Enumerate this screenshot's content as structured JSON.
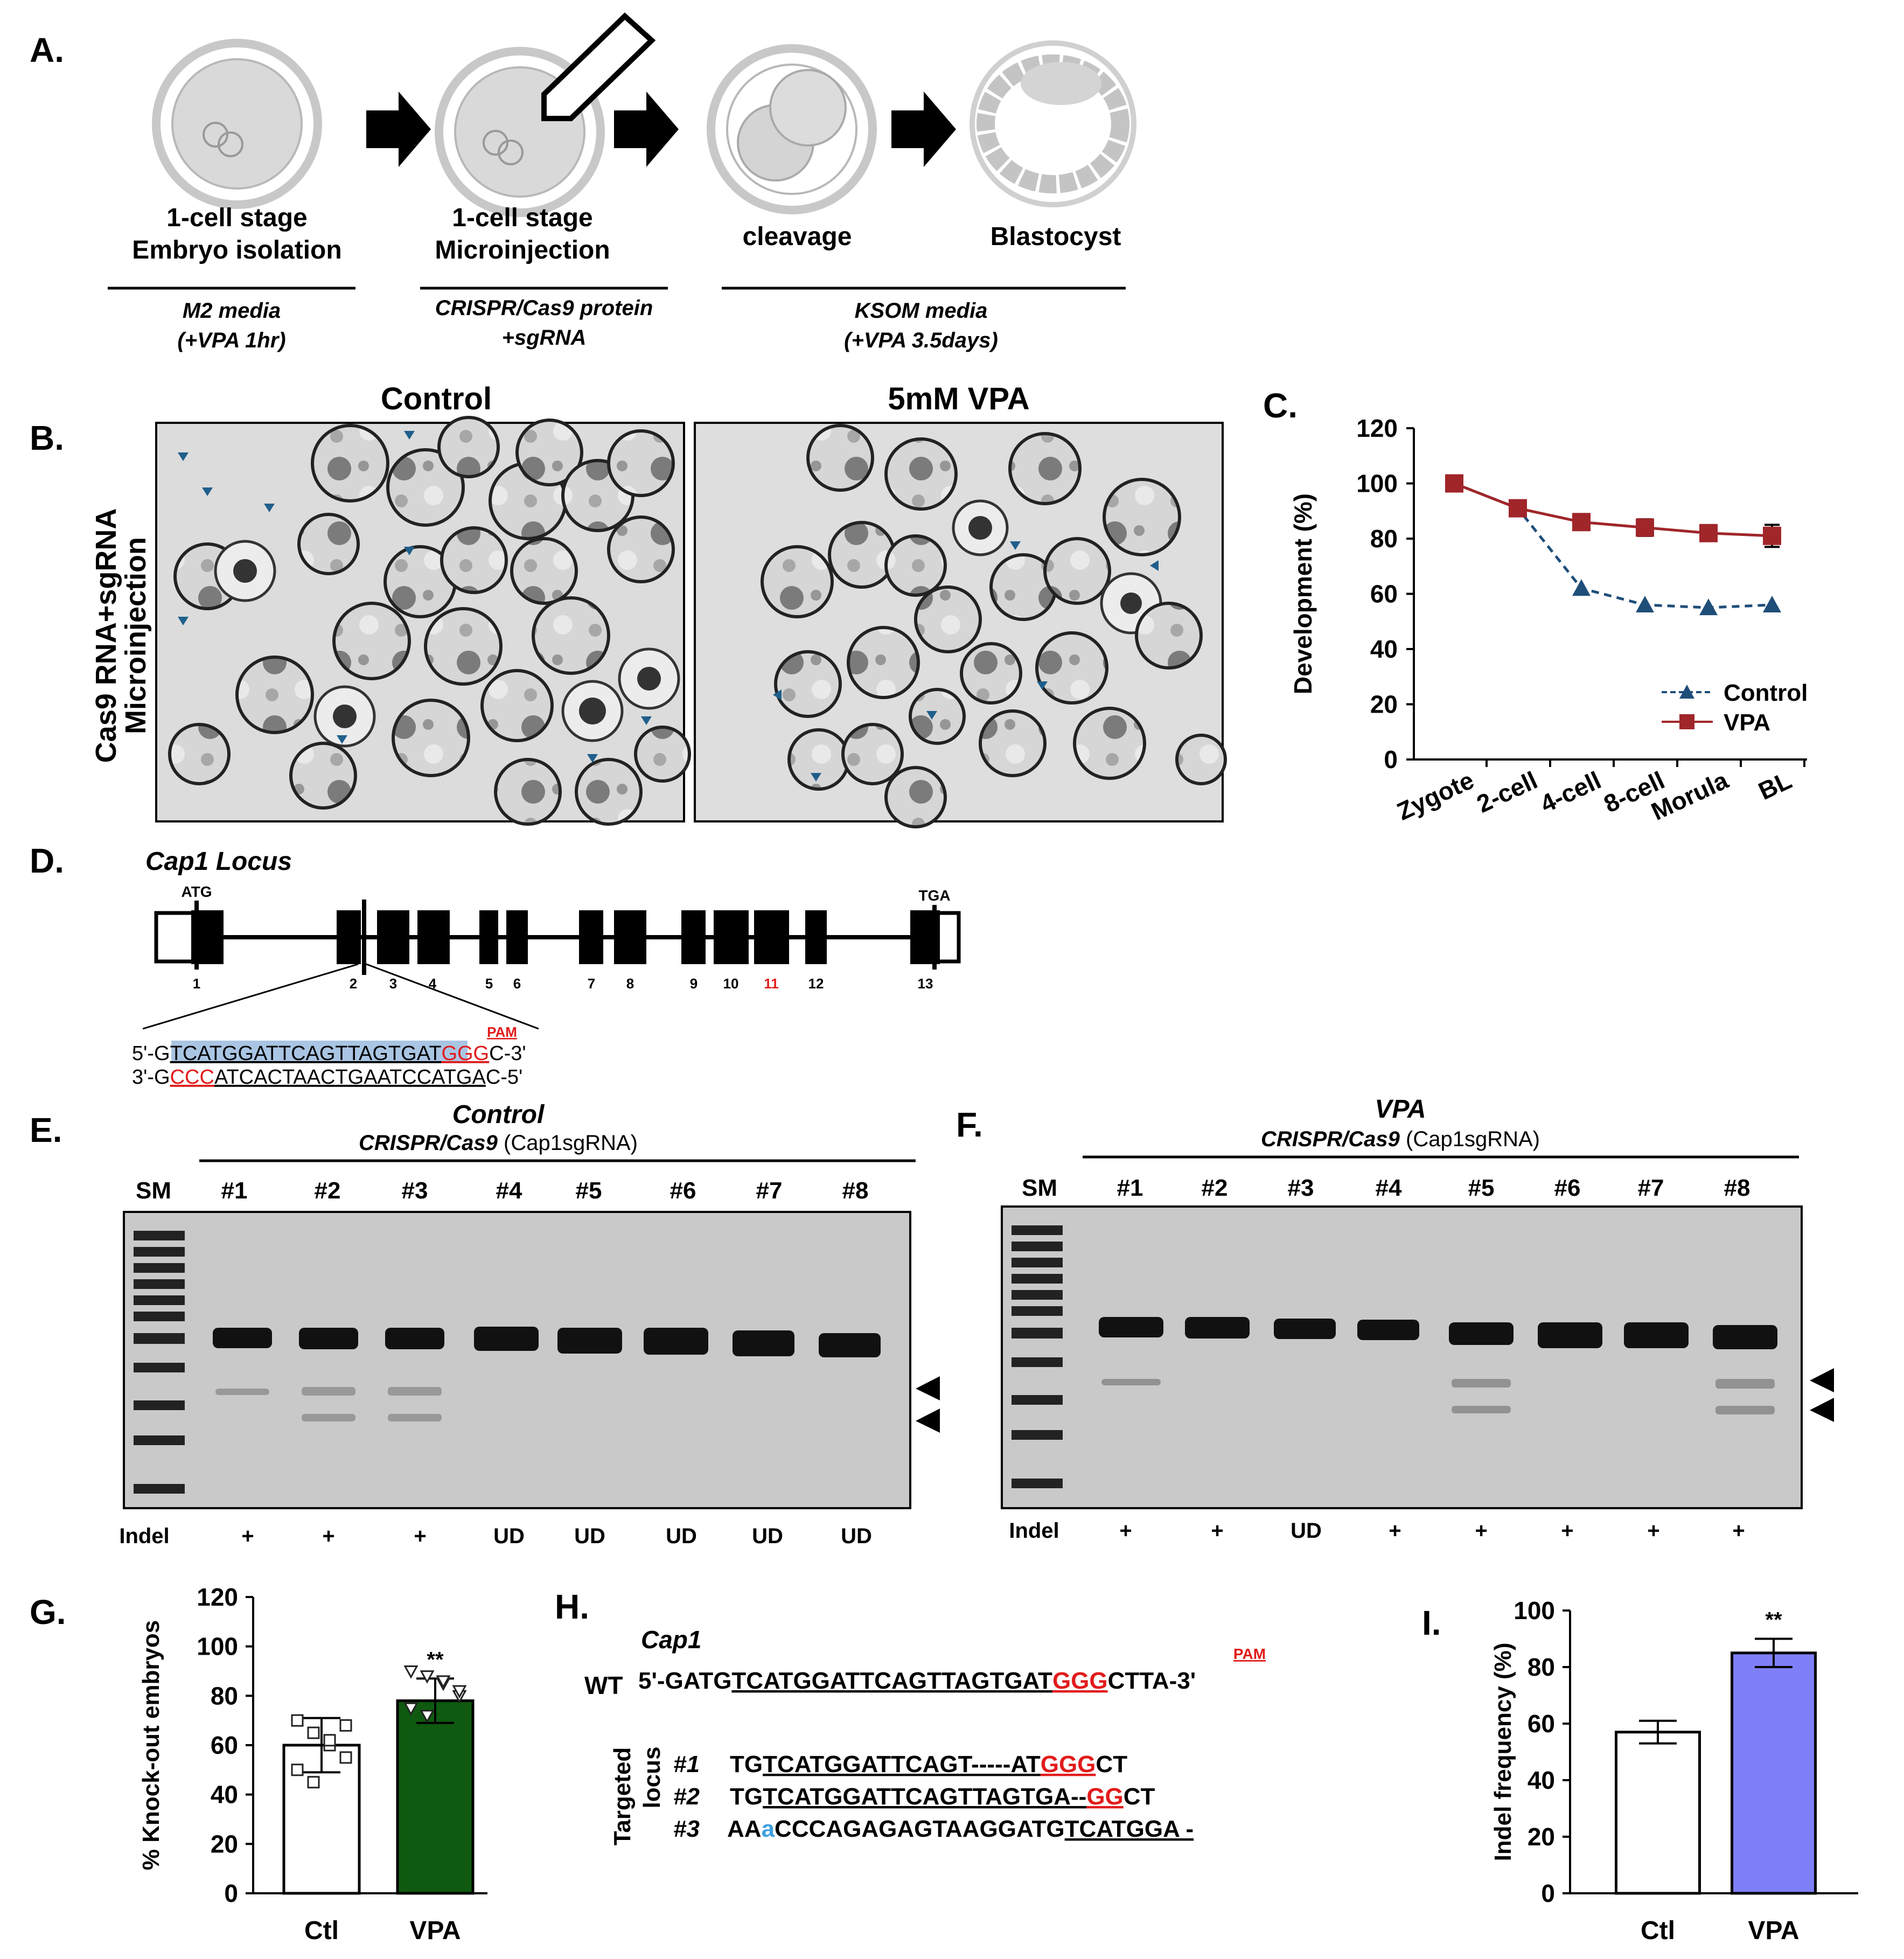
{
  "panels": {
    "A": {
      "label": "A.",
      "stage1": {
        "line1": "1-cell stage",
        "line2": "Embryo isolation"
      },
      "stage2": {
        "line1": "1-cell stage",
        "line2": "Microinjection"
      },
      "stage3": {
        "line1": "cleavage"
      },
      "stage4": {
        "line1": "Blastocyst"
      },
      "media1": {
        "line1": "M2 media",
        "line2": "(+VPA 1hr)"
      },
      "media2": {
        "line1": "CRISPR/Cas9 protein",
        "line2": "+sgRNA"
      },
      "media3": {
        "line1": "KSOM media",
        "line2": "(+VPA 3.5days)"
      }
    },
    "B": {
      "label": "B.",
      "ylabel1": "Cas9 RNA+sgRNA",
      "ylabel2": "Microinjection",
      "control_title": "Control",
      "vpa_title": "5mM VPA"
    },
    "D": {
      "label": "D.",
      "title": "Cap1 Locus",
      "atg": "ATG",
      "tga": "TGA",
      "exons": [
        "1",
        "2",
        "3",
        "4",
        "5",
        "6",
        "7",
        "8",
        "9",
        "10",
        "11",
        "12",
        "13"
      ],
      "pam": "PAM",
      "seq_top": {
        "pre": "5'-G",
        "target": "TCATGGATTCAGTTAGTGAT",
        "pam": "GGG",
        "post": "C-3'"
      },
      "seq_bot": {
        "pre": "3'-G",
        "pam": "CCC",
        "target": "ATCACTAACTGAATCCATGA",
        "post": "C-5'"
      }
    },
    "E": {
      "label": "E.",
      "title": "Control",
      "subtitle_em": "CRISPR/Cas9",
      "subtitle_rest": " (Cap1sgRNA)",
      "lanes": [
        "SM",
        "#1",
        "#2",
        "#3",
        "#4",
        "#5",
        "#6",
        "#7",
        "#8"
      ],
      "indel_label": "Indel",
      "indel": [
        "+",
        "+",
        "+",
        "UD",
        "UD",
        "UD",
        "UD",
        "UD"
      ]
    },
    "F": {
      "label": "F.",
      "title": "VPA",
      "subtitle_em": "CRISPR/Cas9",
      "subtitle_rest": " (Cap1sgRNA)",
      "lanes": [
        "SM",
        "#1",
        "#2",
        "#3",
        "#4",
        "#5",
        "#6",
        "#7",
        "#8"
      ],
      "indel_label": "Indel",
      "indel": [
        "+",
        "+",
        "UD",
        "+",
        "+",
        "+",
        "+",
        "+"
      ]
    },
    "H": {
      "label": "H.",
      "gene": "Cap1",
      "pam": "PAM",
      "wt_label": "WT",
      "wt": {
        "pre": "5'-GATG",
        "target": "TCATGGATTCAGTTAGTGAT",
        "pam": "GGG",
        "post": "CTTA-3'"
      },
      "targeted_label1": "Targeted",
      "targeted_label2": "locus",
      "rows": [
        {
          "id": "#1",
          "pre": "TG",
          "seq": "TCATGGATTCAGT-----AT",
          "pam": "GGG",
          "post": "CT"
        },
        {
          "id": "#2",
          "pre": "TG",
          "seq": "TCATGGATTCAGTTAGTGA--",
          "pam": "GG",
          "post": "CT"
        },
        {
          "id": "#3",
          "pre": "AA",
          "ins": "a",
          "seq": "CCCAGAGAGTAAGGATG",
          "tail": "TCATGGA -"
        }
      ]
    }
  },
  "chart_data": [
    {
      "panel": "C.",
      "type": "line",
      "title": "",
      "xlabel": "",
      "ylabel": "Development (%)",
      "ylim": [
        0,
        120
      ],
      "yticks": [
        0,
        20,
        40,
        60,
        80,
        100,
        120
      ],
      "categories": [
        "Zygote",
        "2-cell",
        "4-cell",
        "8-cell",
        "Morula",
        "BL"
      ],
      "series": [
        {
          "name": "Control",
          "values": [
            100,
            91,
            62,
            56,
            55,
            56
          ],
          "color": "#1f4e79",
          "marker": "triangle",
          "style": "dashed"
        },
        {
          "name": "VPA",
          "values": [
            100,
            91,
            86,
            84,
            82,
            81
          ],
          "color": "#a0262a",
          "marker": "square",
          "style": "solid",
          "errors": [
            1,
            2,
            2,
            3,
            2,
            4
          ]
        }
      ],
      "legend": "bottom-right"
    },
    {
      "panel": "G.",
      "type": "bar",
      "ylabel": "% Knock-out  embryos",
      "ylim": [
        0,
        120
      ],
      "yticks": [
        0,
        20,
        40,
        60,
        80,
        100,
        120
      ],
      "categories": [
        "Ctl",
        "VPA"
      ],
      "values": [
        60,
        78
      ],
      "errors": [
        11,
        9
      ],
      "colors": [
        "#ffffff",
        "#0f5a10"
      ],
      "points": [
        [
          70,
          65,
          60,
          55,
          50,
          45,
          62,
          68
        ],
        [
          90,
          88,
          85,
          80,
          75,
          72,
          86,
          82
        ]
      ],
      "significance": "**"
    },
    {
      "panel": "I.",
      "type": "bar",
      "ylabel": "Indel frequency (%)",
      "ylim": [
        0,
        100
      ],
      "yticks": [
        0,
        20,
        40,
        60,
        80,
        100
      ],
      "categories": [
        "Ctl",
        "VPA"
      ],
      "values": [
        57,
        85
      ],
      "errors": [
        4,
        5
      ],
      "colors": [
        "#ffffff",
        "#7f7ff8"
      ],
      "significance": "**"
    }
  ]
}
